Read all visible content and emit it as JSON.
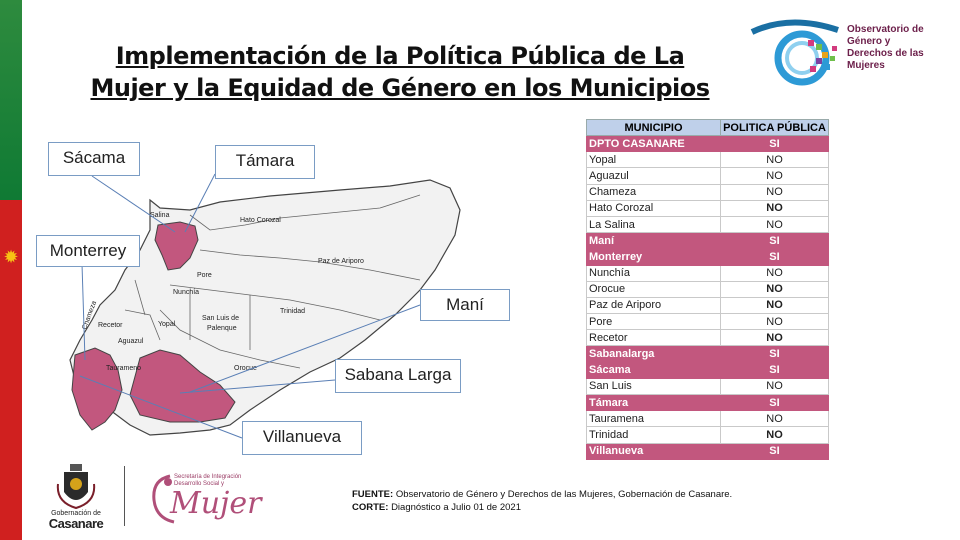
{
  "title_line1": "Implementación de la Política Pública de La",
  "title_line2": "Mujer y la Equidad de Género en los Municipios",
  "logo_top": {
    "line1": "Observatorio de",
    "line2": "Género y",
    "line3": "Derechos de las",
    "line4": "Mujeres"
  },
  "colors": {
    "highlight": "#c2577e",
    "header": "#bfd0ea",
    "map_fill": "#c2577e"
  },
  "callouts": {
    "sacama": "Sácama",
    "tamara": "Támara",
    "monterrey": "Monterrey",
    "mani": "Maní",
    "sabana_larga": "Sabana Larga",
    "villanueva": "Villanueva"
  },
  "map_labels": {
    "hato_corozal": "Hato Corozal",
    "paz_de_ariporo": "Paz de Ariporo",
    "pore": "Pore",
    "nunchia": "Nunchía",
    "trinidad": "Trinidad",
    "san_luis_1": "San Luis de",
    "san_luis_2": "Palenque",
    "yopal": "Yopal",
    "recetor": "Recetor",
    "aguazul": "Aguazul",
    "orocue": "Orocue",
    "tauramena": "Taurameno",
    "chameza": "Chameza",
    "salina": "Salina"
  },
  "table": {
    "header_municipio": "MUNICIPIO",
    "header_politica": "POLITICA PÚBLICA",
    "rows": [
      {
        "name": "DPTO CASANARE",
        "value": "SI",
        "hi": true,
        "bold": false
      },
      {
        "name": "Yopal",
        "value": "NO",
        "hi": false,
        "bold": false
      },
      {
        "name": "Aguazul",
        "value": "NO",
        "hi": false,
        "bold": false
      },
      {
        "name": "Chameza",
        "value": "NO",
        "hi": false,
        "bold": false
      },
      {
        "name": "Hato Corozal",
        "value": "NO",
        "hi": false,
        "bold": true
      },
      {
        "name": "La Salina",
        "value": "NO",
        "hi": false,
        "bold": false
      },
      {
        "name": "Maní",
        "value": "SI",
        "hi": true,
        "bold": false
      },
      {
        "name": "Monterrey",
        "value": "SI",
        "hi": true,
        "bold": false
      },
      {
        "name": "Nunchía",
        "value": "NO",
        "hi": false,
        "bold": false
      },
      {
        "name": "Orocue",
        "value": "NO",
        "hi": false,
        "bold": true
      },
      {
        "name": "Paz de Ariporo",
        "value": "NO",
        "hi": false,
        "bold": true
      },
      {
        "name": "Pore",
        "value": "NO",
        "hi": false,
        "bold": false
      },
      {
        "name": "Recetor",
        "value": "NO",
        "hi": false,
        "bold": true
      },
      {
        "name": "Sabanalarga",
        "value": "SI",
        "hi": true,
        "bold": false
      },
      {
        "name": "Sácama",
        "value": "SI",
        "hi": true,
        "bold": false
      },
      {
        "name": "San Luis",
        "value": "NO",
        "hi": false,
        "bold": false
      },
      {
        "name": "Támara",
        "value": "SI",
        "hi": true,
        "bold": false
      },
      {
        "name": "Tauramena",
        "value": "NO",
        "hi": false,
        "bold": false
      },
      {
        "name": "Trinidad",
        "value": "NO",
        "hi": false,
        "bold": true
      },
      {
        "name": "Villanueva",
        "value": "SI",
        "hi": true,
        "bold": false
      }
    ]
  },
  "footer": {
    "fuente_label": "FUENTE:",
    "fuente_text": "Observatorio de Género y Derechos de las Mujeres, Gobernación de Casanare.",
    "corte_label": "CORTE:",
    "corte_text": "Diagnóstico a Julio 01 de 2021"
  },
  "gob_logo": {
    "line1": "Gobernación de",
    "line2": "Casanare"
  },
  "mujer_logo": {
    "small1": "Secretaría de Integración",
    "small2": "Desarrollo Social y",
    "big": "Mujer"
  }
}
